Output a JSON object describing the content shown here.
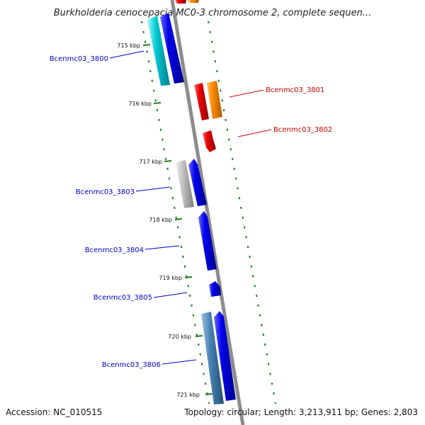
{
  "title": "Burkholderia cenocepacia MC0-3 chromosome 2, complete sequen...",
  "footer": {
    "accession": "Accession: NC_010515",
    "summary": "Topology: circular; Length: 3,213,911 bp; Genes: 2,803"
  },
  "ticks": [
    "715 kbp",
    "716 kbp",
    "717 kbp",
    "718 kbp",
    "719 kbp",
    "720 kbp",
    "721 kbp"
  ],
  "genes": {
    "left": [
      "Bcenmc03_3800",
      "Bcenmc03_3803",
      "Bcenmc03_3804",
      "Bcenmc03_3805",
      "Bcenmc03_3806"
    ],
    "right": [
      "Bcenmc03_3801",
      "Bcenmc03_3802"
    ]
  },
  "colors": {
    "backbone": "#8c8c8c",
    "tick": "#1f7a1f",
    "label_left": "#0000cc",
    "label_right": "#cc0000",
    "blue": "#0000ee",
    "red": "#ee0000",
    "orange": "#ff8c00",
    "cyan": "#00c8d2",
    "gray": "#b4b4b4",
    "steel": "#4682b4"
  }
}
